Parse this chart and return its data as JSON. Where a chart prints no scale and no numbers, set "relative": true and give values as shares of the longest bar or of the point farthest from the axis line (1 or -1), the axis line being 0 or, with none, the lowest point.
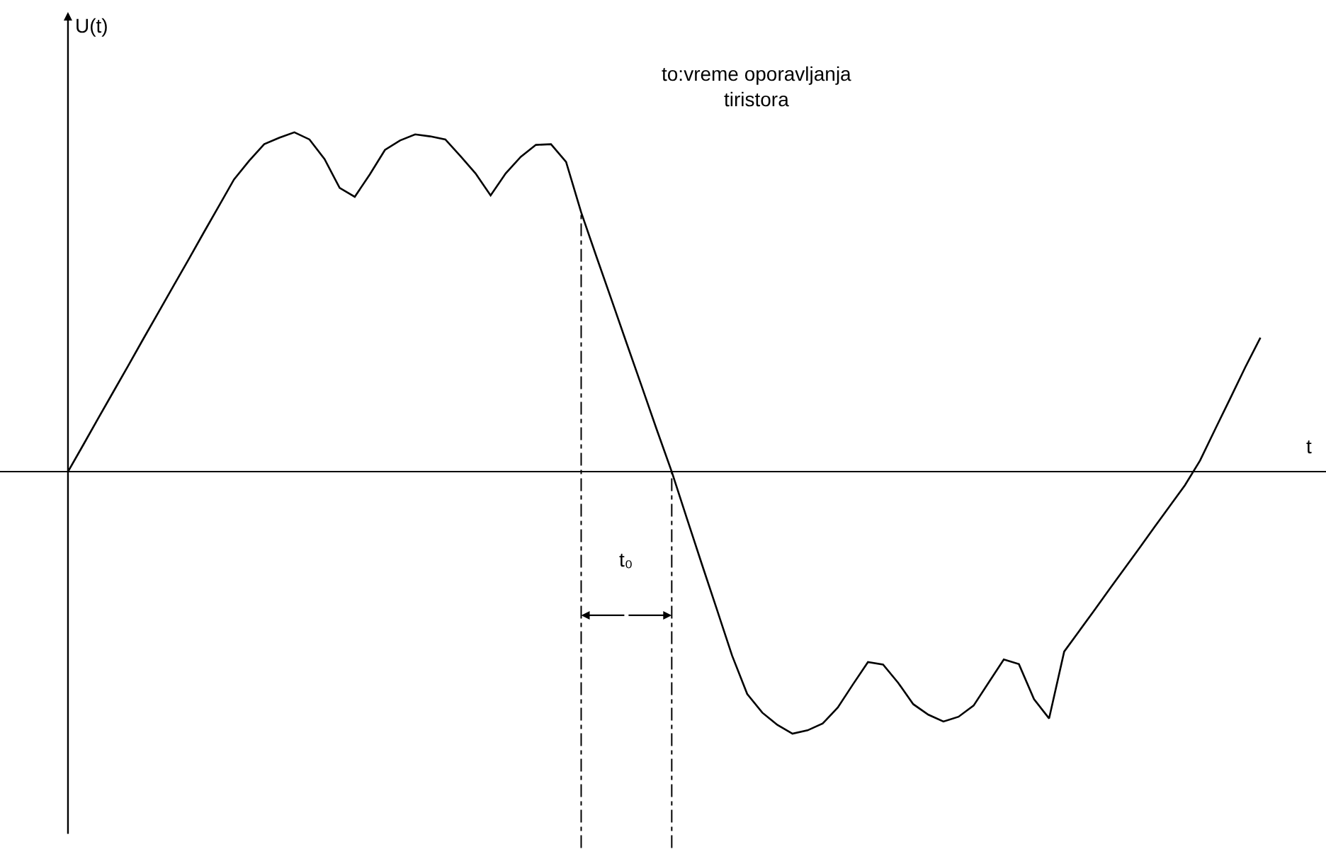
{
  "chart_data": {
    "type": "line",
    "relative": true,
    "xlabel": "t",
    "ylabel": "U(t)",
    "color": "#000000",
    "marker": "none",
    "line_style": "solid",
    "legend": false,
    "categories": [
      null,
      null,
      null,
      null,
      null,
      null,
      null,
      null,
      null,
      null,
      null,
      null,
      null,
      null,
      null,
      null,
      null,
      null,
      null,
      null,
      null,
      null,
      null,
      null,
      null,
      null,
      null,
      null,
      null,
      null,
      null,
      null,
      null,
      null,
      null,
      null,
      null,
      null,
      null,
      null,
      null,
      null,
      null,
      null,
      null,
      null,
      null,
      null,
      null,
      null,
      null,
      null,
      null,
      null,
      null,
      null,
      null,
      null,
      null,
      null,
      null,
      null,
      null,
      null,
      null,
      null,
      null,
      null,
      null,
      null,
      null,
      null,
      null,
      null,
      null,
      null,
      null,
      null,
      null,
      null
    ],
    "values": [
      0,
      0.078,
      0.157,
      0.235,
      0.313,
      0.392,
      0.47,
      0.548,
      0.626,
      0.705,
      0.783,
      0.861,
      0.916,
      0.965,
      0.984,
      1.0,
      0.979,
      0.921,
      0.836,
      0.81,
      0.876,
      0.948,
      0.976,
      0.994,
      0.988,
      0.979,
      0.93,
      0.879,
      0.814,
      0.879,
      0.928,
      0.963,
      0.965,
      0.913,
      0.764,
      0.635,
      0.508,
      0.38,
      0.253,
      0.125,
      0,
      -0.137,
      -0.273,
      -0.407,
      -0.542,
      -0.655,
      -0.71,
      -0.746,
      -0.772,
      -0.762,
      -0.742,
      -0.695,
      -0.627,
      -0.561,
      -0.568,
      -0.622,
      -0.685,
      -0.716,
      -0.736,
      -0.722,
      -0.689,
      -0.621,
      -0.553,
      -0.567,
      -0.67,
      -0.727,
      -0.53,
      -0.469,
      -0.408,
      -0.346,
      -0.285,
      -0.224,
      -0.162,
      -0.101,
      -0.04,
      0.033,
      0.125,
      0.216,
      0.308,
      0.395
    ],
    "annotations": [
      "to:vreme oporavljanja\ntiristora",
      "t₀"
    ]
  }
}
